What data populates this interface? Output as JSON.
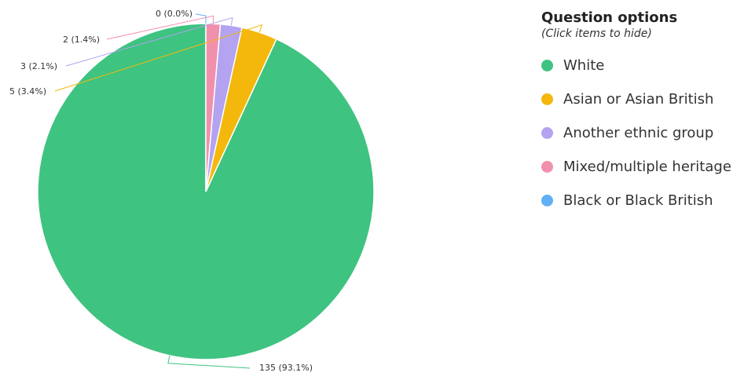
{
  "chart_data": {
    "type": "pie",
    "categories": [
      "White",
      "Asian or Asian British",
      "Another ethnic group",
      "Mixed/multiple heritage",
      "Black or Black British"
    ],
    "values": [
      135,
      5,
      3,
      2,
      0
    ],
    "data_labels": [
      "135 (93.1%)",
      "5 (3.4%)",
      "3 (2.1%)",
      "2 (1.4%)",
      "0 (0.0%)"
    ],
    "colors": [
      "#3fc380",
      "#f3b80b",
      "#b3a3f0",
      "#f190ad",
      "#5fb0f5"
    ],
    "legend_position": "right"
  },
  "legend": {
    "title": "Question options",
    "subtitle": "(Click items to hide)",
    "items": [
      {
        "label": "White",
        "color": "#3fc380"
      },
      {
        "label": "Asian or Asian British",
        "color": "#f3b80b"
      },
      {
        "label": "Another ethnic group",
        "color": "#b3a3f0"
      },
      {
        "label": "Mixed/multiple heritage",
        "color": "#f190ad"
      },
      {
        "label": "Black or Black British",
        "color": "#5fb0f5"
      }
    ]
  }
}
